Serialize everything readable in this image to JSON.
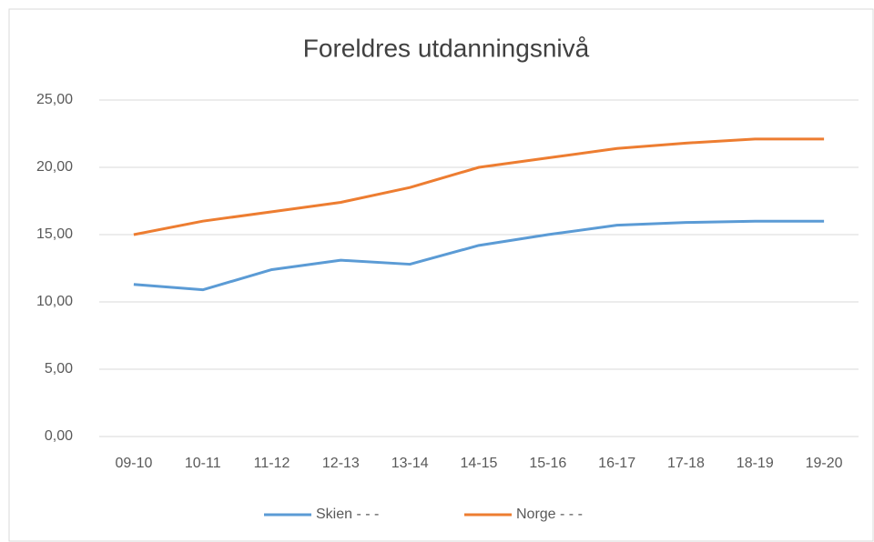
{
  "chart_data": {
    "type": "line",
    "title": "Foreldres utdanningsnivå",
    "categories": [
      "09-10",
      "10-11",
      "11-12",
      "12-13",
      "13-14",
      "14-15",
      "15-16",
      "16-17",
      "17-18",
      "18-19",
      "19-20"
    ],
    "series": [
      {
        "name": "Skien - - -",
        "color": "#5b9bd5",
        "values": [
          11.3,
          10.9,
          12.4,
          13.1,
          12.8,
          14.2,
          15.0,
          15.7,
          15.9,
          16.0,
          16.0
        ]
      },
      {
        "name": "Norge - - -",
        "color": "#ed7d31",
        "values": [
          15.0,
          16.0,
          16.7,
          17.4,
          18.5,
          20.0,
          20.7,
          21.4,
          21.8,
          22.1,
          22.1
        ]
      }
    ],
    "ylim": [
      0,
      25
    ],
    "yticks": [
      {
        "value": 0,
        "label": "0,00"
      },
      {
        "value": 5,
        "label": "5,00"
      },
      {
        "value": 10,
        "label": "10,00"
      },
      {
        "value": 15,
        "label": "15,00"
      },
      {
        "value": 20,
        "label": "20,00"
      },
      {
        "value": 25,
        "label": "25,00"
      }
    ],
    "grid": true,
    "legend": "bottom"
  }
}
